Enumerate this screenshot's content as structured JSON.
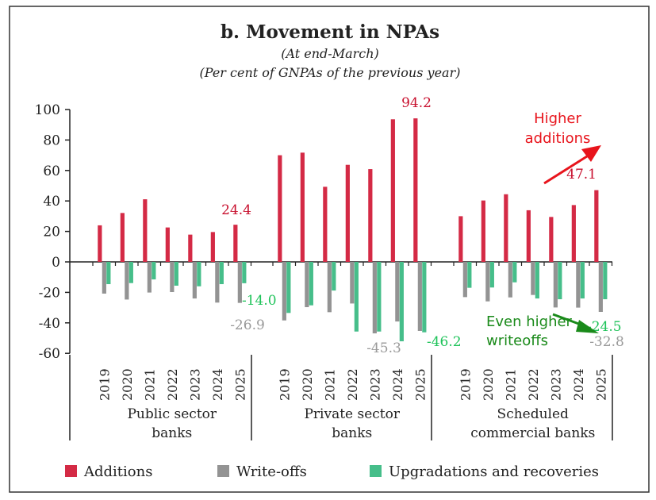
{
  "chart_data": {
    "type": "bar",
    "title": "b. Movement in NPAs",
    "subtitle1": "(At end-March)",
    "subtitle2": "(Per cent of GNPAs of the previous year)",
    "ylim": [
      -60,
      100
    ],
    "yticks": [
      100,
      80,
      60,
      40,
      20,
      0,
      -20,
      -40,
      -60
    ],
    "years": [
      "2019",
      "2020",
      "2021",
      "2022",
      "2023",
      "2024",
      "2025"
    ],
    "groups": [
      {
        "name": "Public sector banks",
        "label_lines": [
          "Public sector",
          "banks"
        ],
        "series": {
          "Additions": [
            24.0,
            32.1,
            41.1,
            22.6,
            17.9,
            19.6,
            24.4
          ],
          "Write-offs": [
            -20.8,
            -24.7,
            -20.1,
            -19.8,
            -24.0,
            -26.7,
            -26.9
          ],
          "Upgradations and recoveries": [
            -14.6,
            -13.9,
            -11.5,
            -15.6,
            -16.0,
            -14.6,
            -14.0
          ]
        }
      },
      {
        "name": "Private sector banks",
        "label_lines": [
          "Private sector",
          "banks"
        ],
        "series": {
          "Additions": [
            70.0,
            71.7,
            49.3,
            63.7,
            60.9,
            93.6,
            94.2
          ],
          "Write-offs": [
            -38.4,
            -29.7,
            -33.0,
            -27.3,
            -46.9,
            -39.1,
            -45.3
          ],
          "Upgradations and recoveries": [
            -33.5,
            -28.5,
            -18.8,
            -45.7,
            -45.7,
            -52.1,
            -46.2
          ]
        }
      },
      {
        "name": "Scheduled commercial banks",
        "label_lines": [
          "Scheduled",
          "commercial banks"
        ],
        "series": {
          "Additions": [
            30.0,
            40.3,
            44.4,
            33.9,
            29.5,
            37.3,
            47.1
          ],
          "Write-offs": [
            -23.1,
            -25.9,
            -23.3,
            -21.7,
            -29.9,
            -30.0,
            -32.8
          ],
          "Upgradations and recoveries": [
            -17.0,
            -16.8,
            -13.4,
            -24.0,
            -24.5,
            -24.0,
            -24.5
          ]
        }
      }
    ],
    "legend": [
      {
        "name": "Additions",
        "color": "#d42a45"
      },
      {
        "name": "Write-offs",
        "color": "#939393"
      },
      {
        "name": "Upgradations and recoveries",
        "color": "#46be8a"
      }
    ],
    "legend_position": "bottom",
    "data_labels": [
      {
        "text": "24.4",
        "color": "#c8102e"
      },
      {
        "text": "-14.0",
        "color": "#1fc35a"
      },
      {
        "text": "-26.9",
        "color": "#999999"
      },
      {
        "text": "94.2",
        "color": "#c8102e"
      },
      {
        "text": "-45.3",
        "color": "#999999"
      },
      {
        "text": "-46.2",
        "color": "#1fc35a"
      },
      {
        "text": "47.1",
        "color": "#c8102e"
      },
      {
        "text": "-24.5",
        "color": "#1fc35a"
      },
      {
        "text": "-32.8",
        "color": "#999999"
      }
    ],
    "annotations": [
      {
        "lines": [
          "Higher",
          "additions"
        ],
        "color": "#e8141c"
      },
      {
        "lines": [
          "Even higher",
          "writeoffs"
        ],
        "color": "#1a8a1a"
      }
    ],
    "grid": false
  }
}
